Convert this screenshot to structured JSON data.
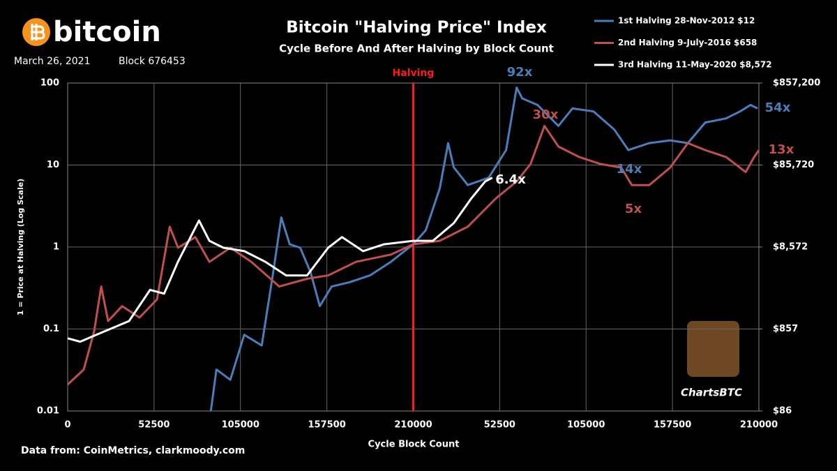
{
  "chart_data": {
    "type": "line",
    "logo_text": "bitcoin",
    "date": "March 26, 2021",
    "block": "Block 676453",
    "title": "Bitcoin \"Halving Price\" Index",
    "subtitle": "Cycle Before And After Halving by Block Count",
    "y_label": "1 = Price at Halving (Log Scale)",
    "x_label": "Cycle Block Count",
    "source": "Data from:  CoinMetrics, clarkmoody.com",
    "watermark": "ChartsBTC",
    "log_scale": true,
    "grid": true,
    "legend": "upper right",
    "halving": {
      "label": "Halving",
      "x": 210000,
      "color": "#ff1a1a"
    },
    "xlim": [
      0,
      420000
    ],
    "xticks": [
      0,
      52500,
      105000,
      157500,
      210000,
      {
        "value": 262500,
        "label": "52500"
      },
      {
        "value": 315000,
        "label": "105000"
      },
      {
        "value": 367500,
        "label": "157500"
      },
      {
        "value": 420000,
        "label": "210000"
      }
    ],
    "ylim": [
      0.01,
      100
    ],
    "yticks": [
      0.01,
      0.1,
      1,
      10,
      100
    ],
    "y2lim": [
      85.72,
      857200
    ],
    "y2ticks": [
      {
        "value": 85.72,
        "label": "$86"
      },
      {
        "value": 857.2,
        "label": "$857"
      },
      {
        "value": 8572,
        "label": "$8,572"
      },
      {
        "value": 85720,
        "label": "$85,720"
      },
      {
        "value": 857200,
        "label": "$857,200"
      }
    ],
    "series": [
      {
        "name": "1st Halving 28-Nov-2012 $12",
        "color": "#4a7ebb",
        "x": [
          87000,
          90400,
          98850,
          107300,
          117900,
          124300,
          129800,
          134900,
          141300,
          147600,
          153200,
          160400,
          171000,
          183700,
          196400,
          210000,
          217600,
          226100,
          231200,
          234600,
          243100,
          255800,
          266400,
          272800,
          276200,
          285500,
          298200,
          306700,
          319500,
          332200,
          340700,
          353400,
          366100,
          376800,
          387400,
          400100,
          408600,
          414900,
          419200
        ],
        "values": [
          0.01,
          0.032,
          0.024,
          0.085,
          0.063,
          0.41,
          2.3,
          1.08,
          0.98,
          0.49,
          0.19,
          0.33,
          0.37,
          0.45,
          0.66,
          1.08,
          1.6,
          5.2,
          18.5,
          9.4,
          5.7,
          7.0,
          15.2,
          88,
          65,
          54,
          30,
          49,
          45,
          27,
          15.2,
          18.5,
          20,
          18.5,
          33,
          37,
          45,
          54,
          49
        ]
      },
      {
        "name": "2nd Halving  9-July-2016 $658",
        "color": "#c0504d",
        "x": [
          0,
          9800,
          16100,
          20400,
          24600,
          33100,
          43700,
          54300,
          62000,
          67100,
          77600,
          86100,
          98900,
          111600,
          128600,
          145500,
          158300,
          175300,
          196500,
          210000,
          226100,
          243100,
          260100,
          272800,
          281300,
          289700,
          298200,
          310900,
          323700,
          336400,
          342800,
          353400,
          366100,
          376800,
          387400,
          400100,
          412000,
          417100,
          420000
        ],
        "values": [
          0.021,
          0.032,
          0.094,
          0.33,
          0.125,
          0.19,
          0.138,
          0.23,
          1.77,
          0.98,
          1.32,
          0.66,
          0.98,
          0.66,
          0.33,
          0.41,
          0.45,
          0.66,
          0.81,
          1.08,
          1.19,
          1.77,
          3.9,
          6.3,
          10.3,
          30,
          16.8,
          12.5,
          10.3,
          9.3,
          5.7,
          5.7,
          9.3,
          18.5,
          15.2,
          12.5,
          8.2,
          12.5,
          15.2
        ]
      },
      {
        "name": "3rd Halving  11-May-2020 $8,572",
        "color": "#ffffff",
        "x": [
          0,
          7600,
          22500,
          37300,
          50100,
          58600,
          67000,
          79800,
          86100,
          94600,
          107300,
          120100,
          132800,
          145500,
          158300,
          166700,
          179500,
          192200,
          210000,
          221900,
          234600,
          245200,
          253700,
          258000
        ],
        "values": [
          0.077,
          0.07,
          0.094,
          0.125,
          0.3,
          0.27,
          0.66,
          2.1,
          1.19,
          0.98,
          0.89,
          0.66,
          0.45,
          0.45,
          0.98,
          1.32,
          0.89,
          1.08,
          1.19,
          1.19,
          1.95,
          3.9,
          6.3,
          7.0
        ]
      }
    ],
    "annotations": [
      {
        "text": "92x",
        "color": "#4a7ebb"
      },
      {
        "text": "30x",
        "color": "#c0504d"
      },
      {
        "text": "6.4x",
        "color": "#ffffff"
      },
      {
        "text": "14x",
        "color": "#4a7ebb"
      },
      {
        "text": "5x",
        "color": "#c0504d"
      },
      {
        "text": "54x",
        "color": "#4a7ebb"
      },
      {
        "text": "13x",
        "color": "#c0504d"
      }
    ]
  }
}
